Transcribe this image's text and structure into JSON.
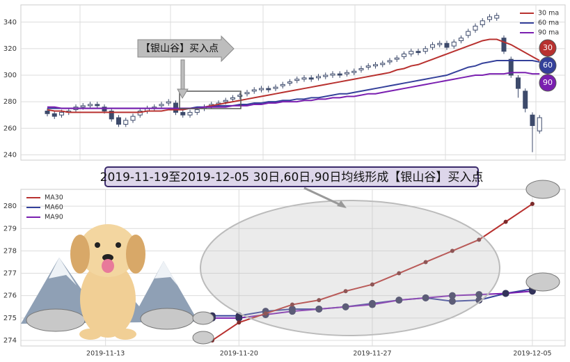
{
  "chart_data": [
    {
      "type": "candlestick",
      "annotation": "【银山谷】买入点",
      "badges": [
        "30",
        "60",
        "90"
      ],
      "legend": "upper right",
      "grid": true,
      "ylim": [
        236,
        353
      ],
      "yticks": [
        240,
        260,
        280,
        300,
        320,
        340
      ],
      "up_color": "#ffffff",
      "down_color": "#3d4a6b",
      "open": [
        273,
        271,
        270,
        272,
        274,
        276,
        277,
        278,
        276,
        273,
        268,
        263,
        266,
        270,
        273,
        275,
        277,
        279,
        279,
        272,
        270,
        272,
        275,
        277,
        278,
        280,
        282,
        284,
        286,
        288,
        289,
        290,
        290,
        292,
        294,
        296,
        297,
        298,
        298,
        299,
        300,
        301,
        301,
        302,
        304,
        306,
        307,
        308,
        310,
        312,
        314,
        316,
        318,
        318,
        321,
        323,
        324,
        322,
        326,
        330,
        334,
        338,
        342,
        343,
        328,
        312,
        298,
        288,
        270,
        258
      ],
      "high": [
        275,
        273,
        274,
        275,
        278,
        279,
        280,
        280,
        278,
        275,
        270,
        268,
        271,
        275,
        277,
        278,
        280,
        282,
        281,
        274,
        274,
        276,
        278,
        280,
        281,
        283,
        285,
        287,
        289,
        291,
        292,
        292,
        293,
        295,
        297,
        299,
        300,
        300,
        301,
        302,
        303,
        303,
        304,
        305,
        307,
        309,
        310,
        311,
        313,
        315,
        318,
        320,
        320,
        322,
        325,
        326,
        326,
        327,
        330,
        335,
        339,
        343,
        346,
        347,
        330,
        314,
        300,
        290,
        272,
        270
      ],
      "low": [
        269,
        267,
        268,
        270,
        272,
        274,
        275,
        275,
        271,
        265,
        261,
        261,
        264,
        268,
        271,
        273,
        275,
        277,
        270,
        268,
        268,
        270,
        273,
        275,
        276,
        278,
        280,
        282,
        284,
        286,
        287,
        287,
        288,
        290,
        292,
        294,
        295,
        295,
        296,
        297,
        298,
        298,
        299,
        300,
        302,
        304,
        305,
        306,
        308,
        310,
        312,
        314,
        315,
        316,
        319,
        321,
        319,
        320,
        324,
        328,
        332,
        336,
        340,
        341,
        316,
        298,
        283,
        272,
        242,
        256
      ],
      "close": [
        271,
        269,
        272,
        273,
        276,
        277,
        278,
        277,
        273,
        267,
        263,
        266,
        269,
        273,
        275,
        276,
        278,
        280,
        272,
        270,
        272,
        274,
        276,
        278,
        279,
        281,
        283,
        285,
        287,
        289,
        290,
        289,
        291,
        293,
        295,
        297,
        298,
        297,
        299,
        300,
        301,
        300,
        302,
        303,
        305,
        307,
        308,
        309,
        311,
        313,
        316,
        318,
        317,
        320,
        323,
        324,
        321,
        325,
        328,
        333,
        337,
        341,
        344,
        345,
        318,
        300,
        290,
        275,
        262,
        268
      ],
      "series": [
        {
          "name": "30 ma",
          "color": "#b8312f",
          "values": [
            274,
            273,
            273,
            272,
            272,
            272,
            272,
            272,
            272,
            272,
            272,
            272,
            272,
            272,
            273,
            273,
            273,
            274,
            274,
            274,
            275,
            275,
            276,
            277,
            278,
            279,
            280,
            281,
            282,
            283,
            284,
            285,
            286,
            287,
            288,
            289,
            290,
            291,
            292,
            293,
            294,
            295,
            296,
            297,
            298,
            299,
            300,
            301,
            302,
            304,
            305,
            307,
            308,
            310,
            312,
            314,
            316,
            318,
            320,
            322,
            324,
            326,
            327,
            327,
            325,
            323,
            320,
            317,
            314,
            311
          ]
        },
        {
          "name": "60 ma",
          "color": "#34409a",
          "values": [
            275,
            275,
            275,
            275,
            275,
            275,
            275,
            275,
            275,
            275,
            275,
            275,
            275,
            275,
            275,
            275,
            275,
            275,
            275,
            275,
            275,
            276,
            276,
            276,
            277,
            277,
            277,
            278,
            278,
            279,
            279,
            280,
            280,
            281,
            281,
            282,
            282,
            283,
            283,
            284,
            285,
            286,
            286,
            287,
            288,
            289,
            290,
            291,
            292,
            293,
            294,
            295,
            296,
            297,
            298,
            299,
            300,
            302,
            304,
            306,
            307,
            309,
            310,
            311,
            311,
            311,
            311,
            311,
            311,
            310
          ]
        },
        {
          "name": "90 ma",
          "color": "#7a1fb0",
          "values": [
            276,
            276,
            275,
            275,
            275,
            275,
            275,
            275,
            275,
            275,
            275,
            275,
            275,
            275,
            275,
            275,
            275,
            275,
            275,
            275,
            275,
            275,
            276,
            276,
            276,
            276,
            277,
            277,
            277,
            278,
            278,
            279,
            279,
            280,
            280,
            280,
            281,
            281,
            282,
            282,
            283,
            283,
            284,
            284,
            285,
            286,
            286,
            287,
            288,
            289,
            290,
            291,
            292,
            293,
            294,
            295,
            296,
            297,
            298,
            299,
            300,
            300,
            301,
            301,
            301,
            302,
            302,
            302,
            301,
            301
          ]
        }
      ]
    },
    {
      "type": "line",
      "title": "2019-11-19至2019-12-05 30日,60日,90日均线形成【银山谷】买入点",
      "legend": "upper left",
      "grid": true,
      "ylim": [
        273.75,
        280.75
      ],
      "yticks": [
        274,
        275,
        276,
        277,
        278,
        279,
        280
      ],
      "categories": [
        null,
        null,
        "2019-11-13",
        null,
        null,
        null,
        null,
        "2019-11-20",
        null,
        null,
        null,
        null,
        "2019-11-27",
        null,
        null,
        null,
        null,
        null,
        "2019-12-05"
      ],
      "series": [
        {
          "name": "MA30",
          "color": "#b8312f",
          "values": [
            null,
            null,
            null,
            null,
            null,
            null,
            274.0,
            274.8,
            275.2,
            275.6,
            275.8,
            276.2,
            276.5,
            277.0,
            277.5,
            278.0,
            278.5,
            279.3,
            280.1
          ]
        },
        {
          "name": "MA60",
          "color": "#34409a",
          "values": [
            null,
            null,
            null,
            null,
            null,
            null,
            275.1,
            275.1,
            275.3,
            275.4,
            275.4,
            275.5,
            275.65,
            275.8,
            275.9,
            275.75,
            275.8,
            276.1,
            276.3
          ]
        },
        {
          "name": "MA90",
          "color": "#7a1fb0",
          "values": [
            null,
            null,
            null,
            null,
            null,
            null,
            275.0,
            275.0,
            275.15,
            275.3,
            275.4,
            275.5,
            275.6,
            275.8,
            275.9,
            276.0,
            276.05,
            276.1,
            276.2
          ]
        }
      ]
    }
  ]
}
